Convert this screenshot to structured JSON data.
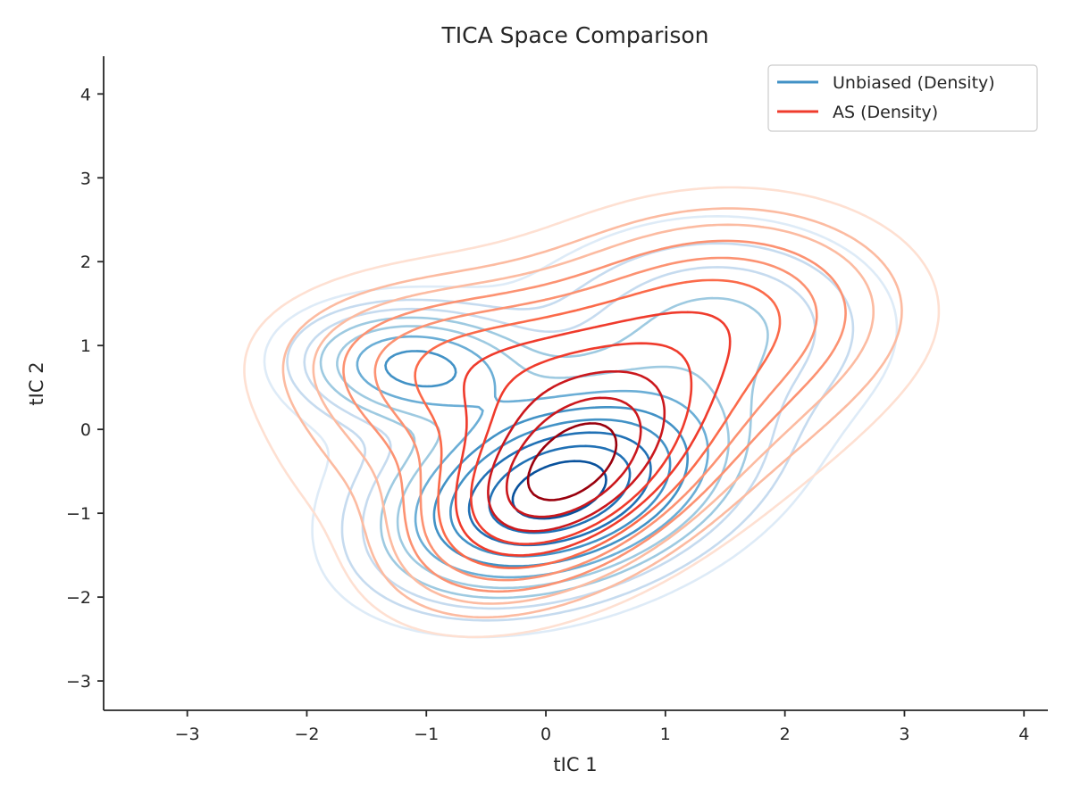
{
  "chart_data": {
    "type": "contour",
    "title": "TICA Space Comparison",
    "xlabel": "tIC 1",
    "ylabel": "tIC 2",
    "xlim": [
      -3.7,
      4.2
    ],
    "ylim": [
      -3.35,
      4.45
    ],
    "xticks": [
      -3,
      -2,
      -1,
      0,
      1,
      2,
      3,
      4
    ],
    "yticks": [
      -3,
      -2,
      -1,
      0,
      1,
      2,
      3,
      4
    ],
    "xtick_labels": [
      "−3",
      "−2",
      "−1",
      "0",
      "1",
      "2",
      "3",
      "4"
    ],
    "ytick_labels": [
      "−3",
      "−2",
      "−1",
      "0",
      "1",
      "2",
      "3",
      "4"
    ],
    "grid": false,
    "legend_position": "top-right",
    "series": [
      {
        "name": "Unbiased (Density)",
        "legend_color": "#4292c6",
        "colors": [
          "#deebf7",
          "#c6dbef",
          "#9ecae1",
          "#6baed6",
          "#4292c6",
          "#2171b5",
          "#08519c"
        ],
        "components": [
          {
            "cx": 0.1,
            "cy": -0.75,
            "sx": 0.75,
            "sy": 0.65,
            "rho": 0.35,
            "w": 1.0
          },
          {
            "cx": -1.1,
            "cy": 0.75,
            "sx": 0.55,
            "sy": 0.4,
            "rho": -0.1,
            "w": 0.45
          },
          {
            "cx": 1.5,
            "cy": 1.3,
            "sx": 0.8,
            "sy": 0.7,
            "rho": 0.0,
            "w": 0.15
          },
          {
            "cx": 0.3,
            "cy": 0.0,
            "sx": 1.2,
            "sy": 1.1,
            "rho": 0.2,
            "w": 0.12
          }
        ],
        "levels": [
          0.035,
          0.07,
          0.11,
          0.16,
          0.22,
          0.3,
          0.4,
          0.5,
          0.62,
          0.75,
          0.88
        ]
      },
      {
        "name": "AS (Density)",
        "legend_color": "#ef3b2c",
        "colors": [
          "#fee0d2",
          "#fcbba1",
          "#fc9272",
          "#fb6a4a",
          "#ef3b2c",
          "#cb181d",
          "#99000d"
        ],
        "components": [
          {
            "cx": 0.15,
            "cy": -0.6,
            "sx": 0.65,
            "sy": 0.7,
            "rho": 0.45,
            "w": 1.0
          },
          {
            "cx": 0.4,
            "cy": 0.6,
            "sx": 1.1,
            "sy": 0.75,
            "rho": 0.25,
            "w": 0.45
          },
          {
            "cx": 1.6,
            "cy": 1.6,
            "sx": 0.8,
            "sy": 0.65,
            "rho": 0.0,
            "w": 0.25
          },
          {
            "cx": -1.0,
            "cy": 0.9,
            "sx": 0.8,
            "sy": 0.55,
            "rho": 0.0,
            "w": 0.18
          },
          {
            "cx": 0.2,
            "cy": -0.1,
            "sx": 1.3,
            "sy": 1.2,
            "rho": 0.2,
            "w": 0.12
          }
        ],
        "levels": [
          0.035,
          0.07,
          0.11,
          0.16,
          0.22,
          0.3,
          0.4,
          0.5,
          0.62,
          0.75,
          0.88
        ]
      }
    ]
  }
}
